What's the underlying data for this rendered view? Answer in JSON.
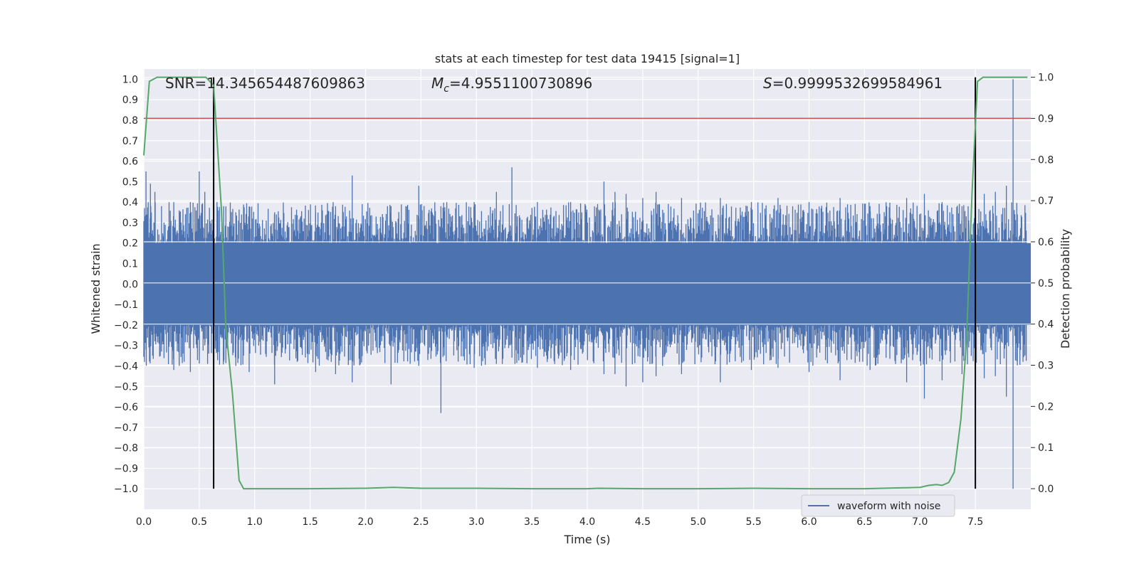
{
  "chart_data": {
    "type": "line",
    "title": "stats at each timestep for test data 19415 [signal=1]",
    "xlabel": "Time (s)",
    "ylabel": "Whitened strain",
    "y2label": "Detection probability",
    "xlim": [
      0,
      8
    ],
    "ylim": [
      -1.1,
      1.05
    ],
    "y2lim": [
      -0.05,
      1.02
    ],
    "xticks": [
      "0.0",
      "0.5",
      "1.0",
      "1.5",
      "2.0",
      "2.5",
      "3.0",
      "3.5",
      "4.0",
      "4.5",
      "5.0",
      "5.5",
      "6.0",
      "6.5",
      "7.0",
      "7.5"
    ],
    "yticks": [
      "−1.0",
      "−0.9",
      "−0.8",
      "−0.7",
      "−0.6",
      "−0.5",
      "−0.4",
      "−0.3",
      "−0.2",
      "−0.1",
      "0.0",
      "0.1",
      "0.2",
      "0.3",
      "0.4",
      "0.5",
      "0.6",
      "0.7",
      "0.8",
      "0.9",
      "1.0"
    ],
    "y2ticks": [
      "0.0",
      "0.1",
      "0.2",
      "0.3",
      "0.4",
      "0.5",
      "0.6",
      "0.7",
      "0.8",
      "0.9",
      "1.0"
    ],
    "annotations": {
      "snr": "SNR=14.345654487609863",
      "mc_symbol": "M",
      "mc_sub": "c",
      "mc_value": "=4.9551100730896",
      "s_symbol": "S",
      "s_value": "=0.9999532699584961"
    },
    "threshold": {
      "value": 0.9,
      "color": "#c44e52"
    },
    "vlines": [
      0.63,
      7.5
    ],
    "series": [
      {
        "name": "waveform with noise",
        "axis": "left",
        "color": "#4c72b0",
        "kind": "noise-fill",
        "core_band": [
          -0.2,
          0.2
        ],
        "spikes": [
          [
            0.02,
            0.55,
            -0.32
          ],
          [
            0.06,
            0.49,
            -0.3
          ],
          [
            0.1,
            0.45,
            -0.28
          ],
          [
            0.16,
            0.38,
            -0.33
          ],
          [
            0.27,
            0.4,
            -0.42
          ],
          [
            0.32,
            0.36,
            -0.4
          ],
          [
            0.42,
            0.4,
            -0.43
          ],
          [
            0.5,
            0.55,
            -0.35
          ],
          [
            0.55,
            0.45,
            -0.3
          ],
          [
            0.66,
            0.4,
            -0.33
          ],
          [
            0.72,
            0.38,
            -0.38
          ],
          [
            0.83,
            0.35,
            -0.4
          ],
          [
            0.95,
            0.37,
            -0.43
          ],
          [
            1.18,
            0.35,
            -0.49
          ],
          [
            1.55,
            0.35,
            -0.43
          ],
          [
            1.73,
            0.38,
            -0.44
          ],
          [
            1.88,
            0.53,
            -0.48
          ],
          [
            2.23,
            0.38,
            -0.49
          ],
          [
            2.48,
            0.48,
            -0.4
          ],
          [
            2.68,
            0.38,
            -0.63
          ],
          [
            2.98,
            0.4,
            -0.41
          ],
          [
            3.18,
            0.45,
            -0.39
          ],
          [
            3.32,
            0.57,
            -0.36
          ],
          [
            3.55,
            0.4,
            -0.41
          ],
          [
            3.85,
            0.4,
            -0.42
          ],
          [
            4.15,
            0.5,
            -0.44
          ],
          [
            4.25,
            0.45,
            -0.44
          ],
          [
            4.35,
            0.44,
            -0.5
          ],
          [
            4.5,
            0.42,
            -0.48
          ],
          [
            4.62,
            0.45,
            -0.45
          ],
          [
            4.85,
            0.42,
            -0.44
          ],
          [
            5.2,
            0.42,
            -0.48
          ],
          [
            5.48,
            0.4,
            -0.42
          ],
          [
            5.72,
            0.42,
            -0.41
          ],
          [
            6.0,
            0.4,
            -0.43
          ],
          [
            6.28,
            0.42,
            -0.47
          ],
          [
            6.55,
            0.38,
            -0.42
          ],
          [
            6.88,
            0.42,
            -0.48
          ],
          [
            7.04,
            0.44,
            -0.56
          ],
          [
            7.2,
            0.4,
            -0.47
          ],
          [
            7.38,
            0.38,
            -0.44
          ],
          [
            7.5,
            0.4,
            -0.4
          ],
          [
            7.58,
            0.44,
            -0.46
          ],
          [
            7.68,
            0.45,
            -0.45
          ],
          [
            7.78,
            0.48,
            -0.55
          ],
          [
            7.84,
            1.0,
            -1.0
          ]
        ]
      },
      {
        "name": "",
        "axis": "right",
        "color": "#55a868",
        "x": [
          0.0,
          0.05,
          0.12,
          0.2,
          0.3,
          0.4,
          0.5,
          0.56,
          0.63,
          0.7,
          0.74,
          0.8,
          0.86,
          0.9,
          1.0,
          1.5,
          2.0,
          2.25,
          2.5,
          3.0,
          3.5,
          4.0,
          4.1,
          4.5,
          5.0,
          5.5,
          6.0,
          6.5,
          7.0,
          7.08,
          7.15,
          7.2,
          7.26,
          7.31,
          7.37,
          7.42,
          7.47,
          7.52,
          7.57,
          7.62,
          7.7,
          7.8,
          7.97
        ],
        "y": [
          0.81,
          0.99,
          1.0,
          1.0,
          1.0,
          1.0,
          1.0,
          1.0,
          0.98,
          0.68,
          0.39,
          0.23,
          0.02,
          0.0,
          0.0,
          0.0,
          0.001,
          0.003,
          0.001,
          0.001,
          0.0,
          0.0,
          0.001,
          0.0,
          0.0,
          0.001,
          0.0,
          0.0,
          0.003,
          0.008,
          0.01,
          0.008,
          0.015,
          0.04,
          0.17,
          0.36,
          0.72,
          0.99,
          1.0,
          1.0,
          1.0,
          1.0,
          1.0
        ]
      }
    ],
    "legend": {
      "label": "waveform with noise",
      "placement": "lower-right"
    },
    "grid": true,
    "colors": {
      "background": "#eaeaf2",
      "grid": "#ffffff",
      "vline": "#000000"
    }
  }
}
